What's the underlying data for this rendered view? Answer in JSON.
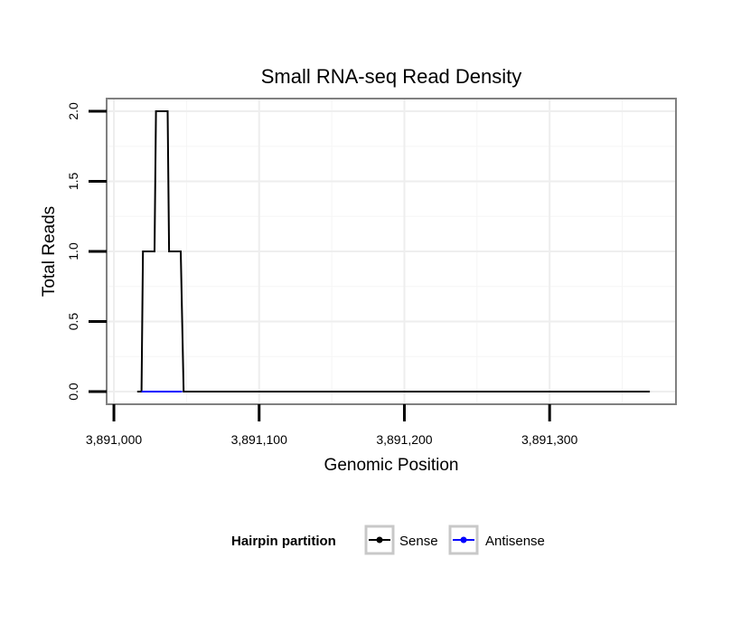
{
  "chart_data": {
    "type": "line",
    "title": "Small RNA-seq Read Density",
    "xlabel": "Genomic Position",
    "ylabel": "Total Reads",
    "xlim": [
      3890995,
      3891387
    ],
    "ylim": [
      -0.09,
      2.09
    ],
    "x_ticks": [
      3891000,
      3891100,
      3891200,
      3891300
    ],
    "x_tick_labels": [
      "3,891,000",
      "3,891,100",
      "3,891,200",
      "3,891,300"
    ],
    "y_ticks": [
      0.0,
      0.5,
      1.0,
      1.5,
      2.0
    ],
    "y_tick_labels": [
      "0.0",
      "0.5",
      "1.0",
      "1.5",
      "2.0"
    ],
    "grid": true,
    "legend": {
      "title": "Hairpin partition",
      "position": "bottom",
      "entries": [
        {
          "label": "Sense",
          "color": "#000000"
        },
        {
          "label": "Antisense",
          "color": "#0000ff"
        }
      ]
    },
    "series": [
      {
        "name": "Sense",
        "color": "#000000",
        "x": [
          3891016,
          3891019,
          3891020,
          3891028,
          3891029,
          3891037,
          3891038,
          3891046,
          3891048,
          3891369
        ],
        "y": [
          0,
          0,
          1,
          1,
          2,
          2,
          1,
          1,
          0,
          0
        ]
      },
      {
        "name": "Antisense",
        "color": "#0000ff",
        "x": [
          3891019,
          3891047
        ],
        "y": [
          0,
          0
        ]
      }
    ]
  }
}
